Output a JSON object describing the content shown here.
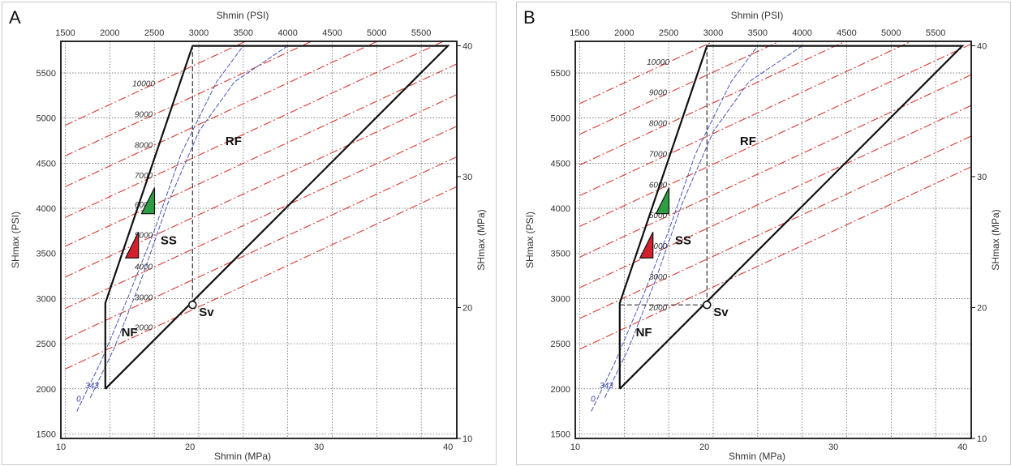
{
  "chart_data": [
    {
      "type": "line",
      "panel_label": "A",
      "xlabel_top": "Shmin (PSI)",
      "xlabel_bottom": "Shmin (MPa)",
      "ylabel_left": "SHmax (PSI)",
      "ylabel_right": "SHmax (MPa)",
      "x_psi_ticks": [
        "1500",
        "2000",
        "2500",
        "3000",
        "3500",
        "4000",
        "4500",
        "5000",
        "5500"
      ],
      "x_mpa_ticks": [
        "10",
        "20",
        "30",
        "40"
      ],
      "y_psi_ticks": [
        "1500",
        "2000",
        "2500",
        "3000",
        "3500",
        "4000",
        "4500",
        "5000",
        "5500"
      ],
      "y_mpa_ticks": [
        "10",
        "20",
        "30",
        "40"
      ],
      "xlim_psi": [
        1450,
        5900
      ],
      "ylim_psi": [
        1450,
        5850
      ],
      "grid": true,
      "sv_label": "Sv",
      "sv_point": {
        "shmin_psi": 2930,
        "shmax_psi": 2930
      },
      "polygon_psi": [
        [
          1950,
          2000
        ],
        [
          1950,
          2950
        ],
        [
          2930,
          5800
        ],
        [
          5800,
          5800
        ],
        [
          1950,
          2000
        ]
      ],
      "sv_vertical_dashed": {
        "x_psi": 2930,
        "y_from": 2930,
        "y_to": 5800
      },
      "region_labels": [
        "RF",
        "SS",
        "NF"
      ],
      "markers": [
        {
          "name": "green",
          "color": "#2e9e44",
          "shmin_psi": 2430,
          "shmax_psi": 4030
        },
        {
          "name": "red",
          "color": "#d4202a",
          "shmin_psi": 2250,
          "shmax_psi": 3540
        }
      ],
      "series": [
        {
          "label": "2000",
          "color": "#d73a2f",
          "x_psi": [
            1500,
            5900
          ],
          "y_psi": [
            2220,
            4240
          ]
        },
        {
          "label": "3000",
          "color": "#d73a2f",
          "x_psi": [
            1500,
            5900
          ],
          "y_psi": [
            2550,
            4570
          ]
        },
        {
          "label": "4000",
          "color": "#d73a2f",
          "x_psi": [
            1500,
            5900
          ],
          "y_psi": [
            2890,
            4910
          ]
        },
        {
          "label": "5000",
          "color": "#d73a2f",
          "x_psi": [
            1500,
            5900
          ],
          "y_psi": [
            3240,
            5260
          ]
        },
        {
          "label": "6000",
          "color": "#d73a2f",
          "x_psi": [
            1500,
            5900
          ],
          "y_psi": [
            3580,
            5600
          ]
        },
        {
          "label": "7000",
          "color": "#d73a2f",
          "x_psi": [
            1500,
            5900
          ],
          "y_psi": [
            3900,
            5920
          ]
        },
        {
          "label": "8000",
          "color": "#d73a2f",
          "x_psi": [
            1500,
            5900
          ],
          "y_psi": [
            4240,
            6260
          ]
        },
        {
          "label": "9000",
          "color": "#d73a2f",
          "x_psi": [
            1500,
            5900
          ],
          "y_psi": [
            4580,
            6600
          ]
        },
        {
          "label": "10000",
          "color": "#d73a2f",
          "x_psi": [
            1500,
            5900
          ],
          "y_psi": [
            4920,
            6940
          ]
        },
        {
          "label": "0",
          "color": "#4a56b8",
          "x_psi": [
            1630,
            1900,
            2200,
            2500,
            2800,
            3200,
            3500
          ],
          "y_psi": [
            1750,
            2300,
            3000,
            3750,
            4600,
            5400,
            5800
          ]
        },
        {
          "label": "343",
          "color": "#4a56b8",
          "x_psi": [
            1780,
            2050,
            2350,
            2650,
            3000,
            3400,
            4000
          ],
          "y_psi": [
            1900,
            2450,
            3200,
            4050,
            4850,
            5400,
            5800
          ]
        }
      ],
      "series_labels_shown": [
        "2000",
        "3000",
        "4000",
        "5000",
        "6000",
        "7000",
        "8000",
        "9000",
        "10000",
        "0",
        "343"
      ]
    },
    {
      "type": "line",
      "panel_label": "B",
      "xlabel_top": "Shmin (PSI)",
      "xlabel_bottom": "Shmin (MPa)",
      "ylabel_left": "SHmax (PSI)",
      "ylabel_right": "SHmax (MPa)",
      "x_psi_ticks": [
        "1500",
        "2000",
        "2500",
        "3000",
        "3500",
        "4000",
        "4500",
        "5000",
        "5500"
      ],
      "x_mpa_ticks": [
        "10",
        "20",
        "30",
        "40"
      ],
      "y_psi_ticks": [
        "1500",
        "2000",
        "2500",
        "3000",
        "3500",
        "4000",
        "4500",
        "5000",
        "5500"
      ],
      "y_mpa_ticks": [
        "10",
        "20",
        "30",
        "40"
      ],
      "xlim_psi": [
        1450,
        5900
      ],
      "ylim_psi": [
        1450,
        5850
      ],
      "grid": true,
      "sv_label": "Sv",
      "sv_point": {
        "shmin_psi": 2930,
        "shmax_psi": 2930
      },
      "polygon_psi": [
        [
          1950,
          2000
        ],
        [
          1950,
          2950
        ],
        [
          2930,
          5800
        ],
        [
          5800,
          5800
        ],
        [
          1950,
          2000
        ]
      ],
      "sv_vertical_dashed": {
        "x_psi": 2930,
        "y_from": 2930,
        "y_to": 5800
      },
      "sv_horizontal_dashed": {
        "y_psi": 2930,
        "x_from": 1950,
        "x_to": 2930
      },
      "region_labels": [
        "RF",
        "SS",
        "NF"
      ],
      "markers": [
        {
          "name": "green",
          "color": "#2e9e44",
          "shmin_psi": 2430,
          "shmax_psi": 4030
        },
        {
          "name": "red",
          "color": "#d4202a",
          "shmin_psi": 2250,
          "shmax_psi": 3540
        }
      ],
      "series": [
        {
          "label": "2000",
          "color": "#d73a2f",
          "x_psi": [
            1500,
            5900
          ],
          "y_psi": [
            2440,
            4460
          ]
        },
        {
          "label": "3000",
          "color": "#d73a2f",
          "x_psi": [
            1500,
            5900
          ],
          "y_psi": [
            2780,
            4800
          ]
        },
        {
          "label": "4000",
          "color": "#d73a2f",
          "x_psi": [
            1500,
            5900
          ],
          "y_psi": [
            3120,
            5140
          ]
        },
        {
          "label": "5000",
          "color": "#d73a2f",
          "x_psi": [
            1500,
            5900
          ],
          "y_psi": [
            3460,
            5480
          ]
        },
        {
          "label": "6000",
          "color": "#d73a2f",
          "x_psi": [
            1500,
            5900
          ],
          "y_psi": [
            3800,
            5820
          ]
        },
        {
          "label": "7000",
          "color": "#d73a2f",
          "x_psi": [
            1500,
            5900
          ],
          "y_psi": [
            4140,
            6160
          ]
        },
        {
          "label": "8000",
          "color": "#d73a2f",
          "x_psi": [
            1500,
            5900
          ],
          "y_psi": [
            4480,
            6500
          ]
        },
        {
          "label": "9000",
          "color": "#d73a2f",
          "x_psi": [
            1500,
            5900
          ],
          "y_psi": [
            4820,
            6840
          ]
        },
        {
          "label": "10000",
          "color": "#d73a2f",
          "x_psi": [
            1500,
            5900
          ],
          "y_psi": [
            5160,
            7180
          ]
        },
        {
          "label": "0",
          "color": "#4a56b8",
          "x_psi": [
            1630,
            1900,
            2200,
            2500,
            2800,
            3200,
            3500
          ],
          "y_psi": [
            1750,
            2300,
            3000,
            3750,
            4600,
            5400,
            5800
          ]
        },
        {
          "label": "343",
          "color": "#4a56b8",
          "x_psi": [
            1780,
            2050,
            2350,
            2650,
            3000,
            3400,
            4000
          ],
          "y_psi": [
            1900,
            2450,
            3200,
            4050,
            4850,
            5400,
            5800
          ]
        }
      ],
      "series_labels_shown": [
        "2000",
        "3000",
        "4000",
        "5000",
        "6000",
        "7000",
        "8000",
        "9000",
        "10000",
        "0",
        "343"
      ]
    }
  ]
}
